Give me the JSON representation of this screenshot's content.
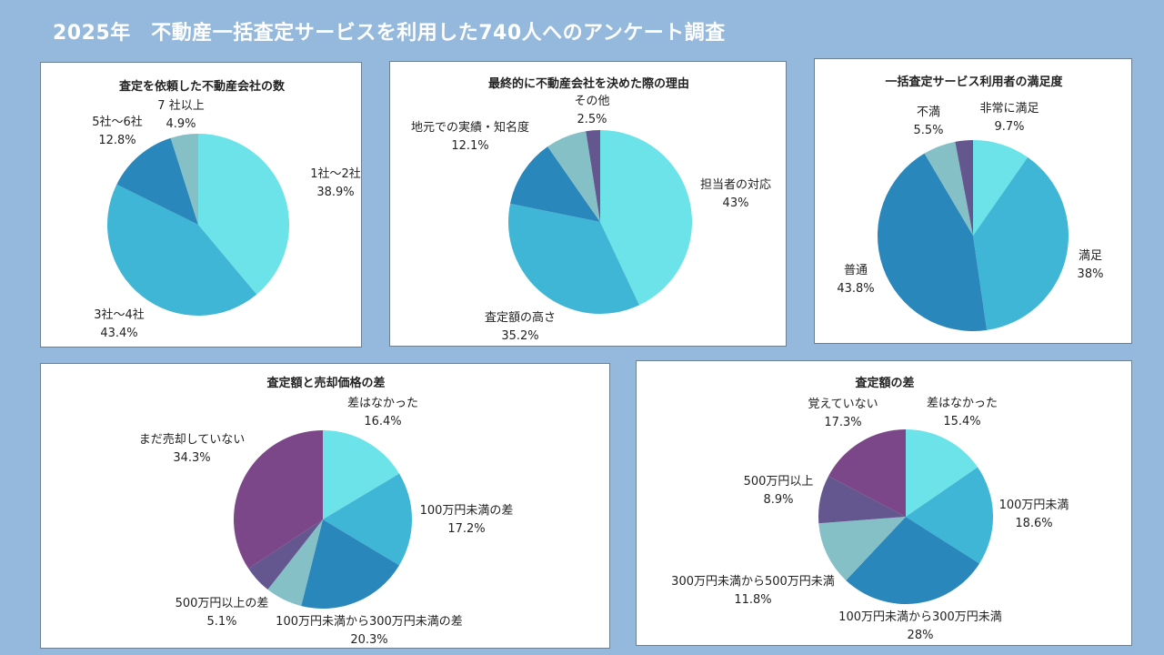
{
  "page": {
    "title": "2025年　不動産一括査定サービスを利用した740人へのアンケート調査"
  },
  "colors": [
    "#6be3e8",
    "#40b6d7",
    "#2a87bb",
    "#85c0c7",
    "#64568f",
    "#7b4789"
  ],
  "chart_data": [
    {
      "type": "pie",
      "title": "査定を依頼した不動産会社の数",
      "slices": [
        {
          "label": "1社〜2社",
          "value": 38.9,
          "value_text": "38.9%",
          "color": "#6be3e8"
        },
        {
          "label": "3社〜4社",
          "value": 43.4,
          "value_text": "43.4%",
          "color": "#40b6d7"
        },
        {
          "label": "5社〜6社",
          "value": 12.8,
          "value_text": "12.8%",
          "color": "#2a87bb"
        },
        {
          "label": "7 社以上",
          "value": 4.9,
          "value_text": "4.9%",
          "color": "#85c0c7"
        }
      ]
    },
    {
      "type": "pie",
      "title": "最終的に不動産会社を決めた際の理由",
      "slices": [
        {
          "label": "担当者の対応",
          "value": 43,
          "value_text": "43%",
          "color": "#6be3e8"
        },
        {
          "label": "査定額の高さ",
          "value": 35.2,
          "value_text": "35.2%",
          "color": "#40b6d7"
        },
        {
          "label": "地元での実績・知名度",
          "value": 12.1,
          "value_text": "12.1%",
          "color": "#2a87bb"
        },
        {
          "label": "",
          "value": 7.2,
          "value_text": "",
          "color": "#85c0c7"
        },
        {
          "label": "その他",
          "value": 2.5,
          "value_text": "2.5%",
          "color": "#64568f"
        }
      ]
    },
    {
      "type": "pie",
      "title": "一括査定サービス利用者の満足度",
      "slices": [
        {
          "label": "非常に満足",
          "value": 9.7,
          "value_text": "9.7%",
          "color": "#6be3e8"
        },
        {
          "label": "満足",
          "value": 38,
          "value_text": "38%",
          "color": "#40b6d7"
        },
        {
          "label": "普通",
          "value": 43.8,
          "value_text": "43.8%",
          "color": "#2a87bb"
        },
        {
          "label": "不満",
          "value": 5.5,
          "value_text": "5.5%",
          "color": "#85c0c7"
        },
        {
          "label": "",
          "value": 3,
          "value_text": "",
          "color": "#64568f"
        }
      ]
    },
    {
      "type": "pie",
      "title": "査定額と売却価格の差",
      "slices": [
        {
          "label": "差はなかった",
          "value": 16.4,
          "value_text": "16.4%",
          "color": "#6be3e8"
        },
        {
          "label": "100万円未満の差",
          "value": 17.2,
          "value_text": "17.2%",
          "color": "#40b6d7"
        },
        {
          "label": "100万円未満から300万円未満の差",
          "value": 20.3,
          "value_text": "20.3%",
          "color": "#2a87bb"
        },
        {
          "label": "",
          "value": 6.7,
          "value_text": "",
          "color": "#85c0c7"
        },
        {
          "label": "500万円以上の差",
          "value": 5.1,
          "value_text": "5.1%",
          "color": "#64568f"
        },
        {
          "label": "まだ売却していない",
          "value": 34.3,
          "value_text": "34.3%",
          "color": "#7b4789"
        }
      ]
    },
    {
      "type": "pie",
      "title": "査定額の差",
      "slices": [
        {
          "label": "差はなかった",
          "value": 15.4,
          "value_text": "15.4%",
          "color": "#6be3e8"
        },
        {
          "label": "100万円未満",
          "value": 18.6,
          "value_text": "18.6%",
          "color": "#40b6d7"
        },
        {
          "label": "100万円未満から300万円未満",
          "value": 28,
          "value_text": "28%",
          "color": "#2a87bb"
        },
        {
          "label": "300万円未満から500万円未満",
          "value": 11.8,
          "value_text": "11.8%",
          "color": "#85c0c7"
        },
        {
          "label": "500万円以上",
          "value": 8.9,
          "value_text": "8.9%",
          "color": "#64568f"
        },
        {
          "label": "覚えていない",
          "value": 17.3,
          "value_text": "17.3%",
          "color": "#7b4789"
        }
      ]
    }
  ]
}
